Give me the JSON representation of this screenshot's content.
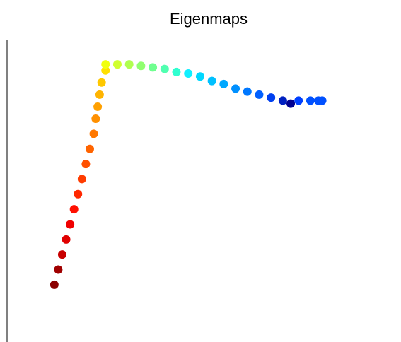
{
  "chart_data": {
    "type": "scatter",
    "title": "Eigenmaps",
    "xlim": [
      0,
      1
    ],
    "ylim": [
      0,
      1
    ],
    "series": [
      {
        "x": [
          0.12,
          0.13,
          0.14,
          0.15,
          0.16,
          0.17,
          0.18,
          0.19,
          0.2,
          0.21,
          0.22,
          0.225,
          0.23,
          0.235,
          0.24,
          0.25,
          0.25,
          0.28,
          0.31,
          0.34,
          0.37,
          0.4,
          0.43,
          0.46,
          0.49,
          0.52,
          0.55,
          0.58,
          0.61,
          0.64,
          0.67,
          0.7,
          0.72,
          0.74,
          0.77,
          0.79,
          0.8
        ],
        "values": [
          0.19,
          0.24,
          0.29,
          0.34,
          0.39,
          0.44,
          0.49,
          0.54,
          0.59,
          0.64,
          0.69,
          0.74,
          0.78,
          0.82,
          0.86,
          0.9,
          0.92,
          0.92,
          0.92,
          0.915,
          0.91,
          0.905,
          0.895,
          0.89,
          0.88,
          0.865,
          0.855,
          0.84,
          0.83,
          0.82,
          0.81,
          0.8,
          0.79,
          0.8,
          0.8,
          0.8,
          0.8
        ],
        "colors": [
          "#8b0000",
          "#a00000",
          "#c80000",
          "#e00000",
          "#f00000",
          "#ff1000",
          "#ff2800",
          "#ff3c00",
          "#ff5000",
          "#ff6400",
          "#ff7800",
          "#ff9000",
          "#ffa000",
          "#ffb400",
          "#ffc800",
          "#ffe000",
          "#f0ff10",
          "#d0ff30",
          "#b0ff50",
          "#90ff70",
          "#70ff90",
          "#50ffb0",
          "#30ffd0",
          "#10f0ff",
          "#00d8ff",
          "#00c0ff",
          "#00a8ff",
          "#0090ff",
          "#0078ff",
          "#0060ff",
          "#0040f0",
          "#0020c0",
          "#000090",
          "#0040ff",
          "#0050ff",
          "#0050ff",
          "#0050ff"
        ]
      }
    ]
  }
}
